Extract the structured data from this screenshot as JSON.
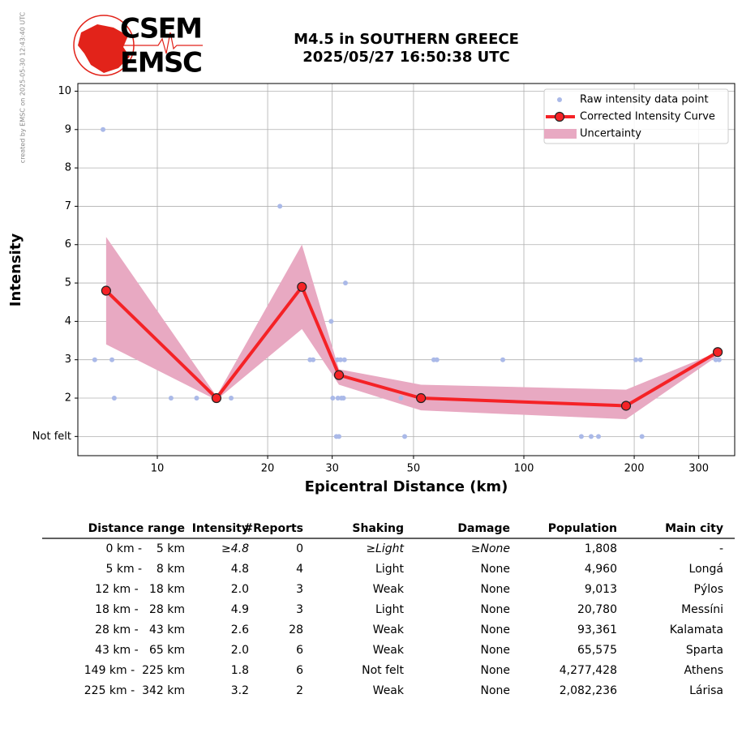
{
  "side_note": "created by EMSC on 2025-05-30 12:43:40 UTC",
  "logo": {
    "top": "CSEM",
    "bottom": "EMSC"
  },
  "chart_data": {
    "type": "line",
    "title": "M4.5 in SOUTHERN GREECE",
    "subtitle": "2025/05/27 16:50:38 UTC",
    "x_label": "Epicentral Distance (km)",
    "y_label": "Intensity",
    "log_x": true,
    "grid": true,
    "legend": "upper right",
    "xlim": [
      6.07,
      376
    ],
    "ylim": [
      0.5,
      10.2
    ],
    "xticks": [
      10,
      20,
      30,
      50,
      100,
      200,
      300
    ],
    "yticks": [
      {
        "value": 1,
        "label": "Not felt"
      },
      2,
      3,
      4,
      5,
      6,
      7,
      8,
      9,
      10
    ],
    "band": {
      "name": "Uncertainty",
      "color": "#e8a9c2",
      "x": [
        7.25,
        14.5,
        24.8,
        31.3,
        52.4,
        190,
        338
      ],
      "upper": [
        6.2,
        2.05,
        6.0,
        2.75,
        2.35,
        2.22,
        3.2
      ],
      "lower": [
        3.4,
        1.95,
        3.8,
        2.35,
        1.68,
        1.45,
        3.1
      ]
    },
    "series": [
      {
        "name": "Raw intensity data point",
        "mode": "scatter",
        "color": "#aab9e8",
        "x": [
          6.75,
          7.11,
          7.52,
          7.63,
          10.9,
          12.8,
          15.9,
          21.6,
          26.1,
          26.6,
          29.8,
          30.1,
          30.8,
          31.3,
          31.0,
          31.6,
          32.4,
          31.1,
          31.8,
          32.2,
          32.6,
          47.3,
          46.2,
          56.8,
          57.9,
          87.6,
          143.5,
          152.6,
          159.8,
          202,
          208,
          210,
          334,
          341
        ],
        "values": [
          3,
          9,
          3,
          2,
          2,
          2,
          2,
          7,
          3,
          3,
          4,
          2,
          1,
          1,
          3,
          3,
          3,
          2,
          2,
          2,
          5,
          1,
          2,
          3,
          3,
          3,
          1,
          1,
          1,
          3,
          3,
          1,
          3,
          3
        ]
      },
      {
        "name": "Corrected Intensity Curve",
        "mode": "line",
        "color": "#f52226",
        "x": [
          7.25,
          14.5,
          24.8,
          31.3,
          52.4,
          190,
          338
        ],
        "values": [
          4.8,
          2.0,
          4.9,
          2.6,
          2.0,
          1.8,
          3.2
        ]
      }
    ]
  },
  "table": {
    "header": [
      "Distance range",
      "Intensity",
      "#Reports",
      "Shaking",
      "Damage",
      "Population",
      "Main city"
    ],
    "rows": [
      [
        "0 km -    5 km",
        "≥4.8",
        "0",
        "≥Light",
        "≥None",
        "1,808",
        "-"
      ],
      [
        "5 km -    8 km",
        "4.8",
        "4",
        "Light",
        "None",
        "4,960",
        "Longá"
      ],
      [
        "12 km -   18 km",
        "2.0",
        "3",
        "Weak",
        "None",
        "9,013",
        "Pýlos"
      ],
      [
        "18 km -   28 km",
        "4.9",
        "3",
        "Light",
        "None",
        "20,780",
        "Messíni"
      ],
      [
        "28 km -   43 km",
        "2.6",
        "28",
        "Weak",
        "None",
        "93,361",
        "Kalamata"
      ],
      [
        "43 km -   65 km",
        "2.0",
        "6",
        "Weak",
        "None",
        "65,575",
        "Sparta"
      ],
      [
        "149 km -  225 km",
        "1.8",
        "6",
        "Not felt",
        "None",
        "4,277,428",
        "Athens"
      ],
      [
        "225 km -  342 km",
        "3.2",
        "2",
        "Weak",
        "None",
        "2,082,236",
        "Lárisa"
      ]
    ]
  }
}
